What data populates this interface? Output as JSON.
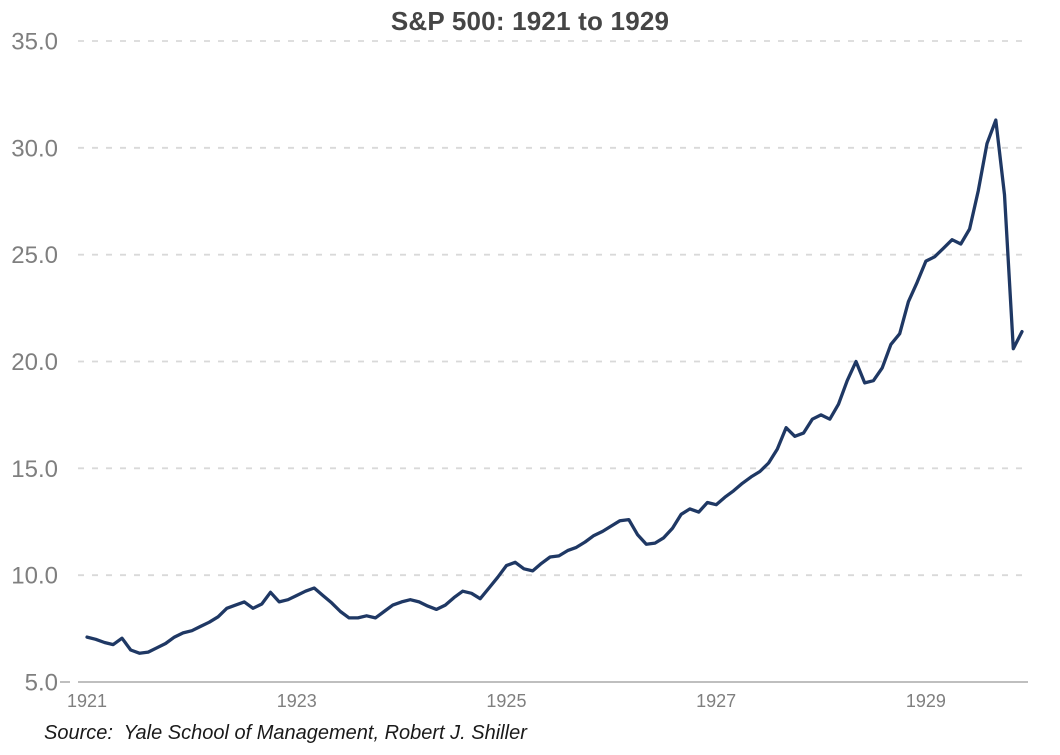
{
  "title": "S&P 500: 1921 to 1929",
  "source": "Source:  Yale School of Management, Robert J. Shiller",
  "chart_data": {
    "type": "line",
    "title": "S&P 500: 1921 to 1929",
    "x_start": "1921-01",
    "x_end": "1929-12",
    "frequency": "monthly",
    "xlabel": "",
    "ylabel": "",
    "ylim": [
      5.0,
      35.0
    ],
    "y_ticks": [
      35,
      30,
      25,
      20,
      15,
      10,
      5
    ],
    "y_tick_labels": [
      "35.0",
      "30.0",
      "25.0",
      "20.0",
      "15.0",
      "10.0",
      "5.0"
    ],
    "x_ticks": [
      {
        "label": "1921",
        "month_index": 0
      },
      {
        "label": "1923",
        "month_index": 24
      },
      {
        "label": "1925",
        "month_index": 48
      },
      {
        "label": "1927",
        "month_index": 72
      },
      {
        "label": "1929",
        "month_index": 96
      }
    ],
    "grid": {
      "horizontal": "dashed",
      "vertical": "none"
    },
    "legend": "none",
    "series": [
      {
        "name": "S&P 500",
        "color": "#1f3864",
        "values": [
          7.1,
          7.0,
          6.85,
          6.75,
          7.05,
          6.5,
          6.35,
          6.4,
          6.6,
          6.8,
          7.1,
          7.3,
          7.4,
          7.6,
          7.8,
          8.05,
          8.45,
          8.6,
          8.75,
          8.45,
          8.65,
          9.2,
          8.75,
          8.85,
          9.05,
          9.25,
          9.4,
          9.05,
          8.7,
          8.3,
          8.0,
          8.0,
          8.1,
          8.0,
          8.3,
          8.6,
          8.75,
          8.85,
          8.75,
          8.55,
          8.4,
          8.6,
          8.95,
          9.25,
          9.15,
          8.9,
          9.4,
          9.9,
          10.45,
          10.6,
          10.3,
          10.2,
          10.55,
          10.85,
          10.9,
          11.15,
          11.3,
          11.55,
          11.85,
          12.05,
          12.3,
          12.55,
          12.6,
          11.9,
          11.45,
          11.5,
          11.75,
          12.2,
          12.85,
          13.1,
          12.95,
          13.4,
          13.3,
          13.65,
          13.95,
          14.3,
          14.6,
          14.85,
          15.25,
          15.9,
          16.9,
          16.5,
          16.65,
          17.3,
          17.5,
          17.3,
          18.0,
          19.1,
          20.0,
          19.0,
          19.1,
          19.7,
          20.8,
          21.3,
          22.8,
          23.7,
          24.7,
          24.9,
          25.3,
          25.7,
          25.5,
          26.2,
          28.0,
          30.2,
          31.3,
          27.8,
          20.6,
          21.4
        ]
      }
    ],
    "style": {
      "line_color": "#1f3864",
      "grid_color": "#d9d9d9",
      "axis_color": "#bfbfbf",
      "tick_label_color": "#7f7f7f",
      "title_color": "#454545",
      "source_color": "#1a1a1a",
      "background": "#ffffff"
    }
  }
}
